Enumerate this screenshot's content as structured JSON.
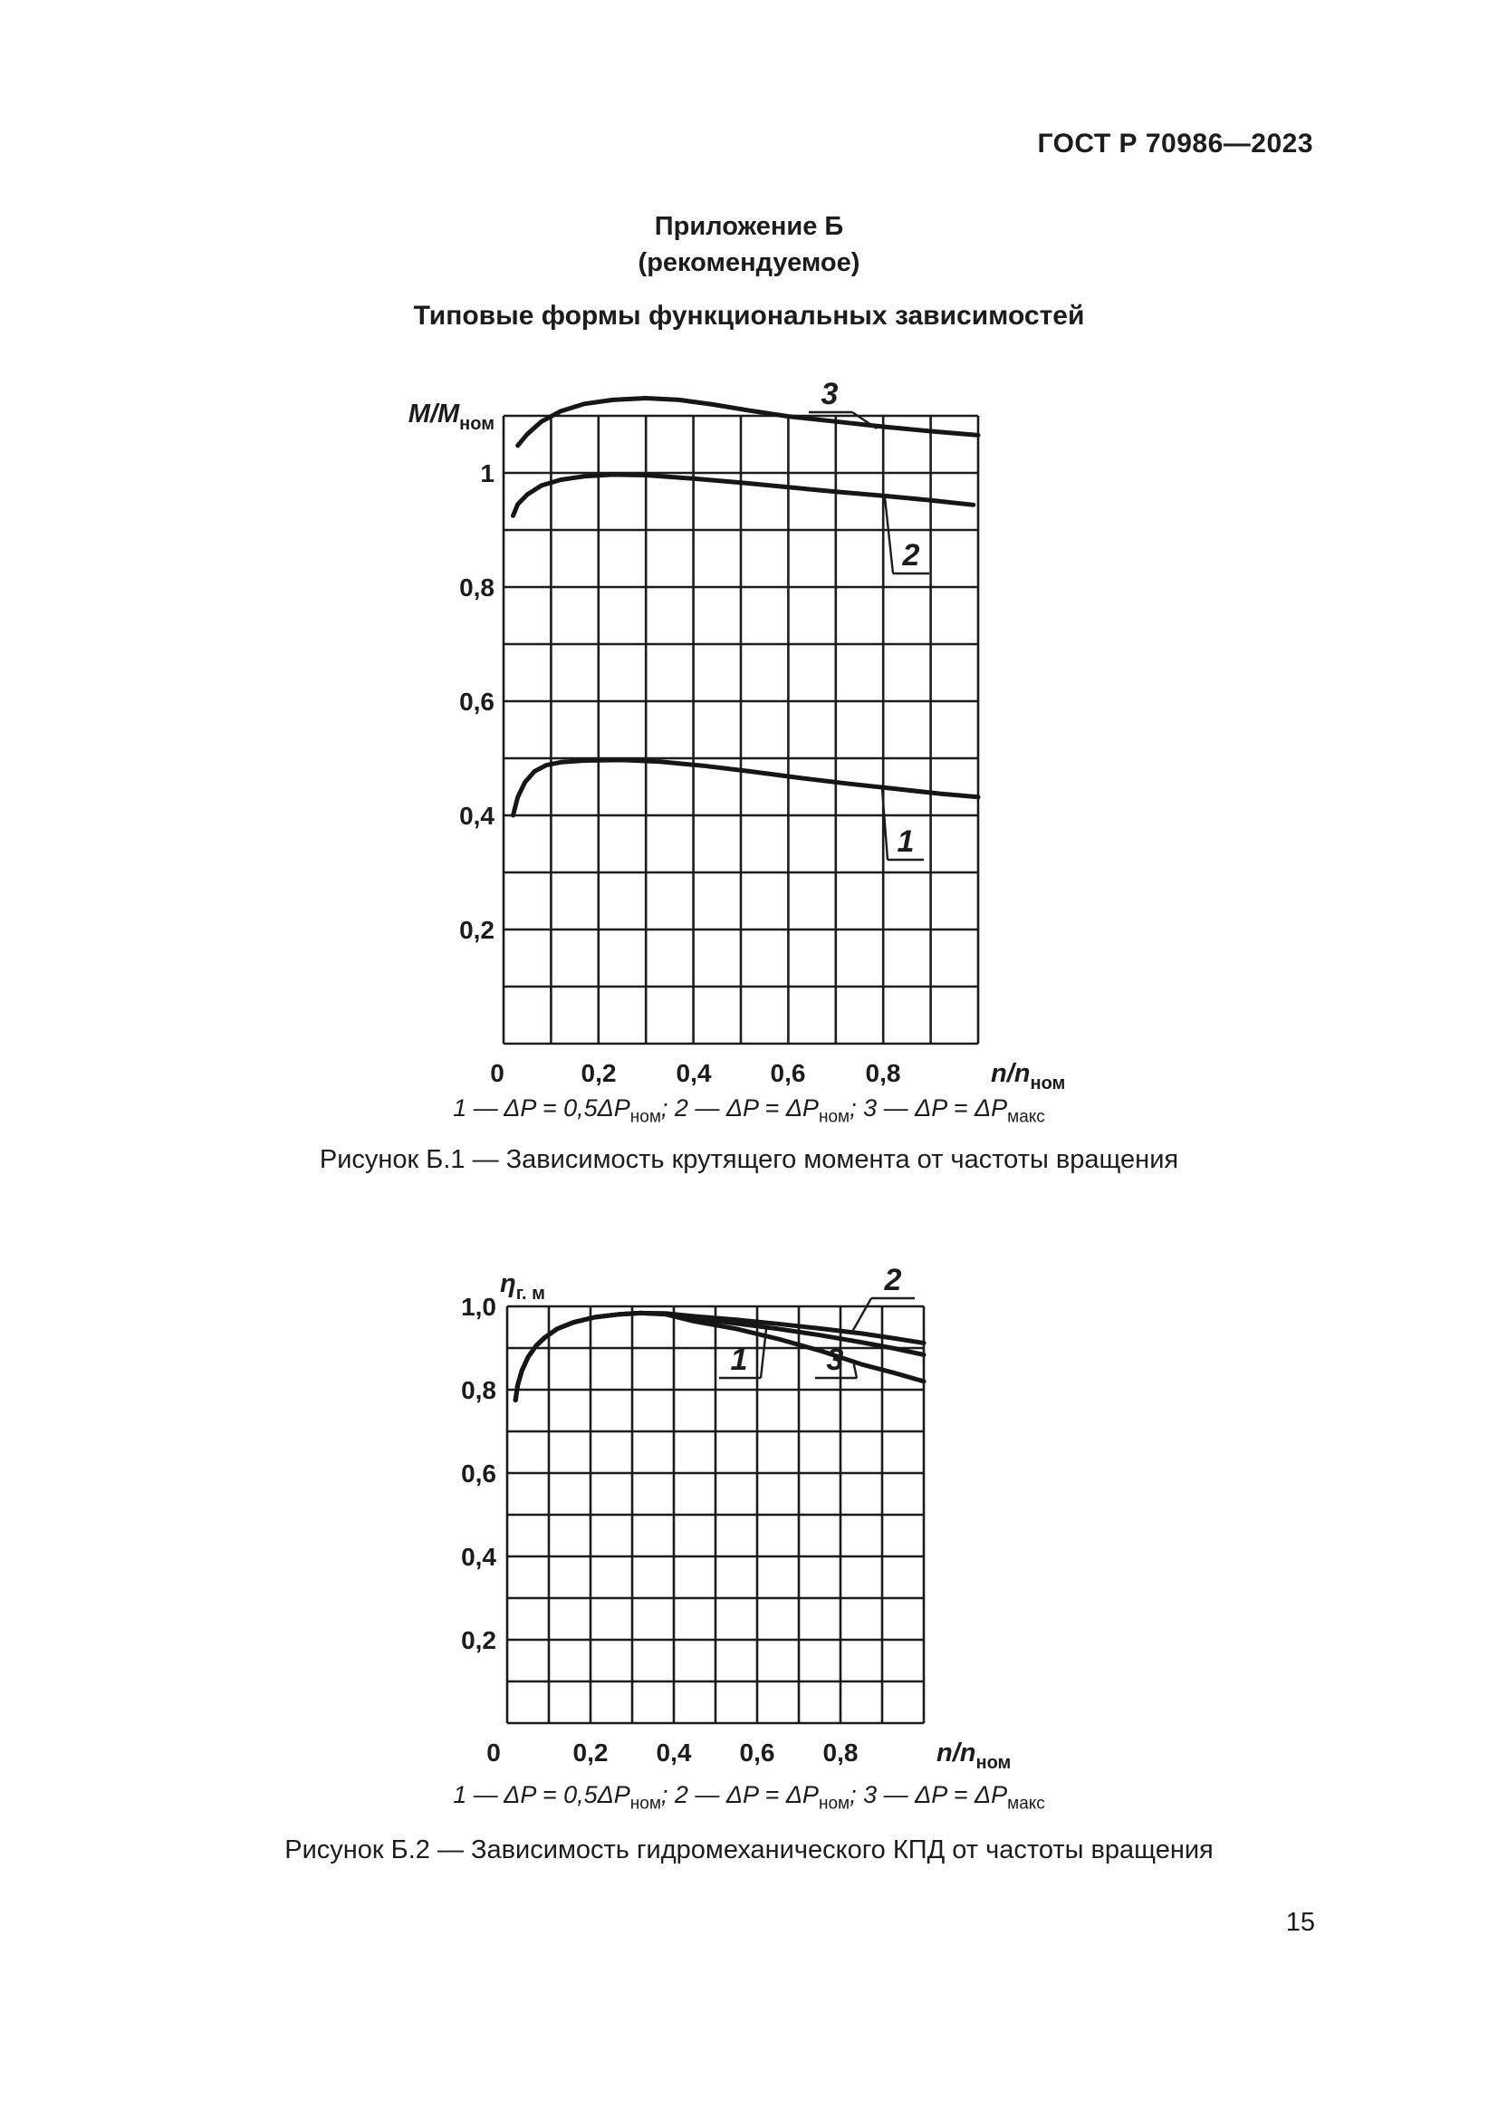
{
  "page": {
    "header": "ГОСТ Р 70986—2023",
    "page_number": "15"
  },
  "appendix": {
    "title": "Приложение Б",
    "subtitle": "(рекомендуемое)",
    "heading": "Типовые формы функциональных зависимостей"
  },
  "legend": {
    "segments": [
      {
        "text": "1 — ΔP = 0,5ΔP",
        "sub": "ном",
        "sep": "; "
      },
      {
        "text": "2 — ΔP = ΔP",
        "sub": "ном",
        "sep": "; "
      },
      {
        "text": "3 — ΔP = ΔP",
        "sub": "макс",
        "sep": ""
      }
    ]
  },
  "figure1": {
    "caption": "Рисунок Б.1 — Зависимость крутящего момента от частоты вращения",
    "y_axis": {
      "main": "M/M",
      "sub": "ном"
    },
    "x_axis": {
      "main": "n/n",
      "sub": "ном"
    },
    "y_ticks": [
      "1",
      "0,8",
      "0,6",
      "0,4",
      "0,2"
    ],
    "x_ticks": [
      "0",
      "0,2",
      "0,4",
      "0,6",
      "0,8"
    ],
    "callouts": [
      {
        "label": "1"
      },
      {
        "label": "2"
      },
      {
        "label": "3"
      }
    ]
  },
  "figure2": {
    "caption": "Рисунок Б.2 — Зависимость гидромеханического КПД от частоты вращения",
    "y_axis": {
      "main": "η",
      "sub": "г. м"
    },
    "x_axis": {
      "main": "n/n",
      "sub": "ном"
    },
    "y_ticks": [
      "1,0",
      "0,8",
      "0,6",
      "0,4",
      "0,2"
    ],
    "x_ticks": [
      "0",
      "0,2",
      "0,4",
      "0,6",
      "0,8"
    ],
    "callouts": [
      {
        "label": "1"
      },
      {
        "label": "2"
      },
      {
        "label": "3"
      }
    ]
  },
  "chart_data": [
    {
      "type": "line",
      "title": "Рисунок Б.1 — Зависимость крутящего момента от частоты вращения",
      "xlabel": "n/n_ном",
      "ylabel": "M/M_ном",
      "xlim": [
        0,
        1.0
      ],
      "ylim": [
        0,
        1.1
      ],
      "x_step": 0.1,
      "y_step": 0.1,
      "x_tick_values": [
        0,
        0.2,
        0.4,
        0.6,
        0.8
      ],
      "y_tick_values": [
        1,
        0.8,
        0.6,
        0.4,
        0.2
      ],
      "grid": true,
      "legend_position": "below",
      "series": [
        {
          "name": "1 — ΔP = 0,5ΔP_ном",
          "points": [
            [
              0.02,
              0.4
            ],
            [
              0.03,
              0.432
            ],
            [
              0.045,
              0.458
            ],
            [
              0.065,
              0.477
            ],
            [
              0.09,
              0.488
            ],
            [
              0.12,
              0.493
            ],
            [
              0.17,
              0.496
            ],
            [
              0.25,
              0.497
            ],
            [
              0.33,
              0.494
            ],
            [
              0.42,
              0.487
            ],
            [
              0.52,
              0.477
            ],
            [
              0.62,
              0.466
            ],
            [
              0.72,
              0.456
            ],
            [
              0.82,
              0.447
            ],
            [
              0.92,
              0.438
            ],
            [
              1.0,
              0.432
            ]
          ]
        },
        {
          "name": "2 — ΔP = ΔP_ном",
          "points": [
            [
              0.02,
              0.925
            ],
            [
              0.03,
              0.945
            ],
            [
              0.05,
              0.962
            ],
            [
              0.08,
              0.978
            ],
            [
              0.12,
              0.988
            ],
            [
              0.17,
              0.994
            ],
            [
              0.23,
              0.997
            ],
            [
              0.3,
              0.996
            ],
            [
              0.4,
              0.99
            ],
            [
              0.5,
              0.983
            ],
            [
              0.6,
              0.975
            ],
            [
              0.7,
              0.967
            ],
            [
              0.8,
              0.96
            ],
            [
              0.9,
              0.952
            ],
            [
              0.99,
              0.944
            ]
          ]
        },
        {
          "name": "3 — ΔP = ΔP_макс",
          "points": [
            [
              0.03,
              1.048
            ],
            [
              0.05,
              1.068
            ],
            [
              0.08,
              1.09
            ],
            [
              0.12,
              1.108
            ],
            [
              0.17,
              1.121
            ],
            [
              0.23,
              1.128
            ],
            [
              0.3,
              1.131
            ],
            [
              0.37,
              1.128
            ],
            [
              0.44,
              1.12
            ],
            [
              0.52,
              1.109
            ],
            [
              0.6,
              1.099
            ],
            [
              0.7,
              1.09
            ],
            [
              0.8,
              1.081
            ],
            [
              0.9,
              1.073
            ],
            [
              1.0,
              1.066
            ]
          ]
        }
      ]
    },
    {
      "type": "line",
      "title": "Рисунок Б.2 — Зависимость гидромеханического КПД от частоты вращения",
      "xlabel": "n/n_ном",
      "ylabel": "η_г.м",
      "xlim": [
        0,
        1.0
      ],
      "ylim": [
        0,
        1.0
      ],
      "x_step": 0.1,
      "y_step": 0.1,
      "x_tick_values": [
        0,
        0.2,
        0.4,
        0.6,
        0.8
      ],
      "y_tick_values": [
        1.0,
        0.8,
        0.6,
        0.4,
        0.2
      ],
      "grid": true,
      "legend_position": "below",
      "series": [
        {
          "name": "1 — ΔP = 0,5ΔP_ном",
          "points": [
            [
              0.02,
              0.775
            ],
            [
              0.025,
              0.81
            ],
            [
              0.035,
              0.845
            ],
            [
              0.05,
              0.878
            ],
            [
              0.07,
              0.906
            ],
            [
              0.09,
              0.925
            ],
            [
              0.12,
              0.946
            ],
            [
              0.16,
              0.962
            ],
            [
              0.21,
              0.974
            ],
            [
              0.27,
              0.981
            ],
            [
              0.32,
              0.984
            ],
            [
              0.38,
              0.982
            ],
            [
              0.45,
              0.971
            ],
            [
              0.55,
              0.959
            ],
            [
              0.65,
              0.946
            ],
            [
              0.75,
              0.931
            ],
            [
              0.85,
              0.914
            ],
            [
              0.93,
              0.899
            ],
            [
              1.0,
              0.884
            ]
          ]
        },
        {
          "name": "2 — ΔP = ΔP_ном",
          "points": [
            [
              0.02,
              0.775
            ],
            [
              0.025,
              0.81
            ],
            [
              0.035,
              0.845
            ],
            [
              0.05,
              0.878
            ],
            [
              0.07,
              0.906
            ],
            [
              0.09,
              0.925
            ],
            [
              0.12,
              0.946
            ],
            [
              0.16,
              0.962
            ],
            [
              0.21,
              0.974
            ],
            [
              0.27,
              0.981
            ],
            [
              0.32,
              0.984
            ],
            [
              0.38,
              0.983
            ],
            [
              0.45,
              0.976
            ],
            [
              0.55,
              0.968
            ],
            [
              0.65,
              0.958
            ],
            [
              0.75,
              0.947
            ],
            [
              0.85,
              0.935
            ],
            [
              0.93,
              0.923
            ],
            [
              1.0,
              0.912
            ]
          ]
        },
        {
          "name": "3 — ΔP = ΔP_макс",
          "points": [
            [
              0.02,
              0.775
            ],
            [
              0.025,
              0.81
            ],
            [
              0.035,
              0.845
            ],
            [
              0.05,
              0.878
            ],
            [
              0.07,
              0.906
            ],
            [
              0.09,
              0.925
            ],
            [
              0.12,
              0.946
            ],
            [
              0.16,
              0.962
            ],
            [
              0.21,
              0.974
            ],
            [
              0.27,
              0.981
            ],
            [
              0.32,
              0.984
            ],
            [
              0.38,
              0.981
            ],
            [
              0.45,
              0.964
            ],
            [
              0.55,
              0.946
            ],
            [
              0.65,
              0.922
            ],
            [
              0.75,
              0.894
            ],
            [
              0.85,
              0.861
            ],
            [
              0.93,
              0.84
            ],
            [
              1.0,
              0.82
            ]
          ]
        }
      ]
    }
  ]
}
